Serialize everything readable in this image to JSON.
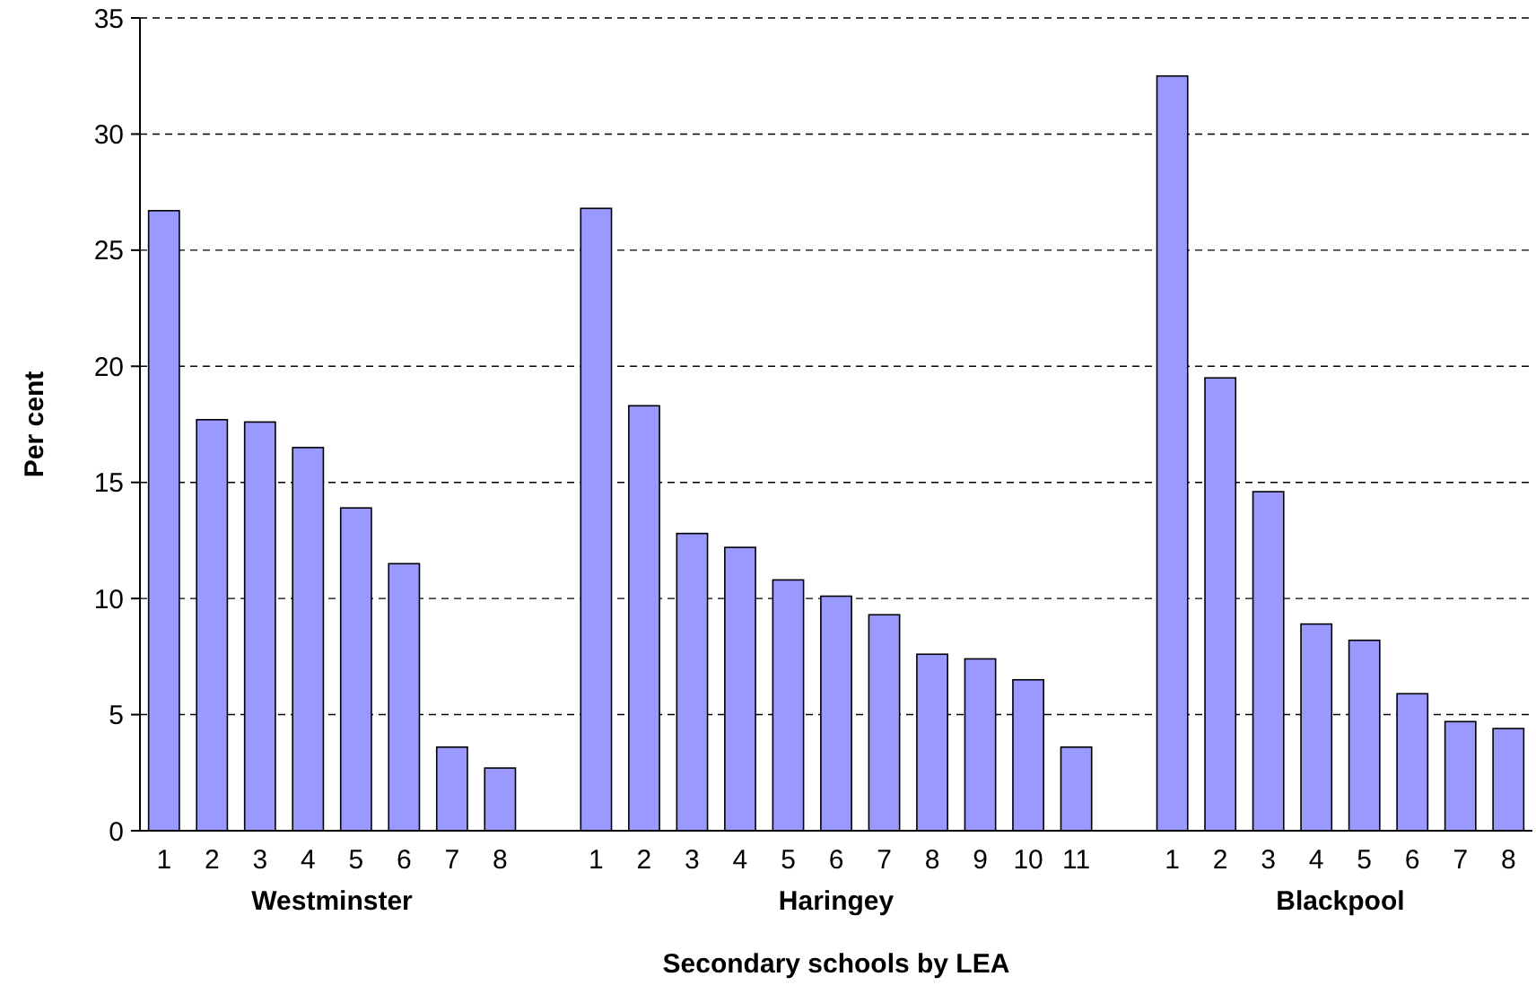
{
  "chart_data": {
    "type": "bar",
    "xlabel": "Secondary schools by LEA",
    "ylabel": "Per cent",
    "categories": [
      "1",
      "2",
      "3",
      "4",
      "5",
      "6",
      "7",
      "8",
      null,
      "1",
      "2",
      "3",
      "4",
      "5",
      "6",
      "7",
      "8",
      "9",
      "10",
      "11",
      null,
      "1",
      "2",
      "3",
      "4",
      "5",
      "6",
      "7",
      "8"
    ],
    "values": [
      26.7,
      17.7,
      17.6,
      16.5,
      13.9,
      11.5,
      3.6,
      2.7,
      null,
      26.8,
      18.3,
      12.8,
      12.2,
      10.8,
      10.1,
      9.3,
      7.6,
      7.4,
      6.5,
      3.6,
      null,
      32.5,
      19.5,
      14.6,
      8.9,
      8.2,
      5.9,
      4.7,
      4.4
    ],
    "color": "#9999ff",
    "ylim": [
      0,
      35
    ],
    "yticks": [
      0,
      5,
      10,
      15,
      20,
      25,
      30,
      35
    ],
    "grid": "y",
    "annotations": [
      "Westminster",
      "Haringey",
      "Blackpool"
    ]
  }
}
